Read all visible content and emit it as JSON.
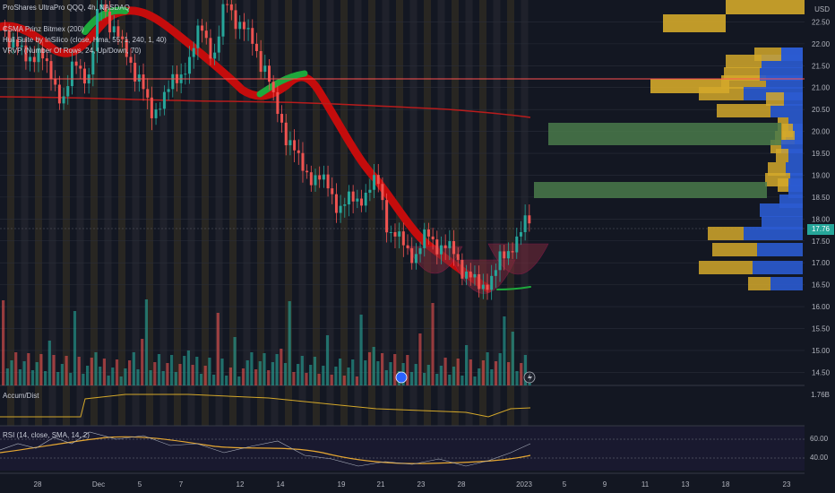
{
  "header": {
    "symbol_line": "ProShares UltraPro QQQ, 4h, NASDAQ",
    "indicator_1": "CSMA Prinz Bitmex (200)",
    "indicator_2": "Hull Suite by InSilico (close, Hma, 55, 1, 240, 1, 40)",
    "indicator_3": "VRVP (Number Of Rows, 24, Up/Down, 70)",
    "currency": "USD"
  },
  "price_axis": {
    "ticks": [
      "22.50",
      "22.00",
      "21.50",
      "21.00",
      "20.50",
      "20.00",
      "19.50",
      "19.00",
      "18.50",
      "18.00",
      "17.50",
      "17.00",
      "16.50",
      "16.00",
      "15.50",
      "15.00",
      "14.50"
    ],
    "current_price": "17.76",
    "current_price_color": "#26a69a"
  },
  "time_axis": {
    "ticks": [
      "28",
      "Dec",
      "5",
      "7",
      "12",
      "14",
      "19",
      "21",
      "23",
      "28",
      "2023",
      "5",
      "9",
      "11",
      "13",
      "18",
      "23"
    ]
  },
  "accum_dist": {
    "label": "Accum/Dist",
    "value": "1.76B"
  },
  "rsi": {
    "label": "RSI (14, close, SMA, 14, 2)",
    "ticks": [
      "60.00",
      "40.00"
    ]
  },
  "colors": {
    "background": "#131722",
    "up": "#26a69a",
    "down": "#ef5350",
    "hull_down": "#c40c0c",
    "hull_up": "#1ea83c",
    "sma": "#b71c1c",
    "vp_up": "#2b5bd0",
    "vp_down": "#d4a82a",
    "vp_highlight": "#4a7a4a",
    "rsi_line": "#e7a832",
    "hline": "#ff5252"
  },
  "chart_data": {
    "type": "candlestick",
    "title": "ProShares UltraPro QQQ, 4h, NASDAQ",
    "ylim": [
      14.2,
      23.0
    ],
    "close_path": [
      22.1,
      21.6,
      21.9,
      21.2,
      20.8,
      21.5,
      21.3,
      22.9,
      22.4,
      21.7,
      21.3,
      20.3,
      20.9,
      21.1,
      21.7,
      22.3,
      21.8,
      22.9,
      22.5,
      22.0,
      21.5,
      20.4,
      19.8,
      19.1,
      19.0,
      18.7,
      18.3,
      18.4,
      18.6,
      18.8,
      17.7,
      17.4,
      17.2,
      17.6,
      17.4,
      17.2,
      16.8,
      16.4,
      16.7,
      17.1,
      17.6,
      17.9
    ],
    "horizontal_line": 21.2,
    "volume_profile_rows": 24
  },
  "icons": {
    "event_marker": "dividend-icon",
    "flash": "flash-icon"
  }
}
